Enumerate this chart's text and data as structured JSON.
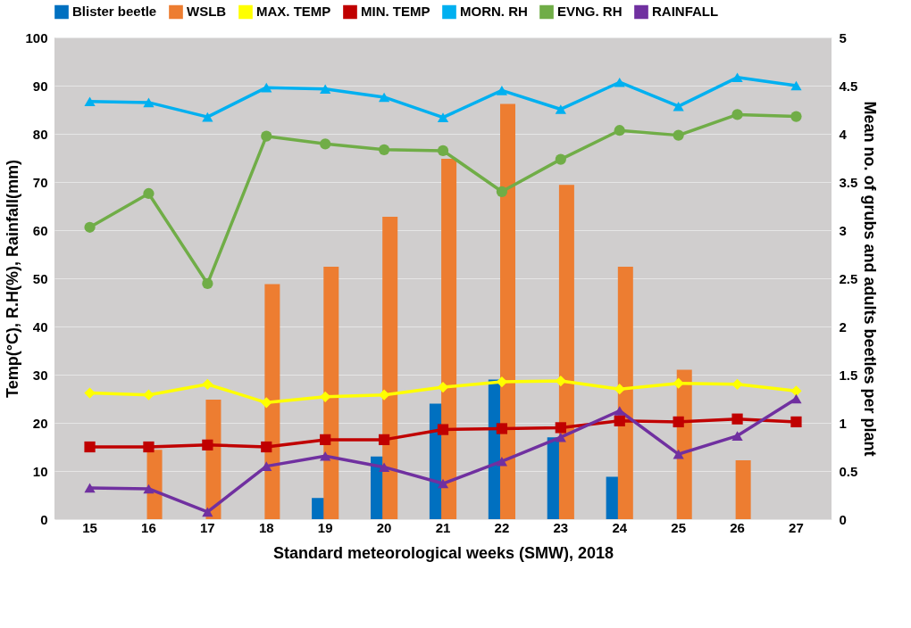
{
  "chart_data": {
    "type": "bar",
    "xlabel": "Standard meteorological weeks (SMW), 2018",
    "ylabel": "Temp(°C), R.H(%),  Rainfall(mm)",
    "y2label": "Mean no. of grubs and adults beetles per plant",
    "categories": [
      "15",
      "16",
      "17",
      "18",
      "19",
      "20",
      "21",
      "22",
      "23",
      "24",
      "25",
      "26",
      "27"
    ],
    "ylim": [
      0,
      100
    ],
    "yticks": [
      0,
      10,
      20,
      30,
      40,
      50,
      60,
      70,
      80,
      90,
      100
    ],
    "y2lim": [
      0,
      5
    ],
    "y2ticks": [
      0,
      0.5,
      1,
      1.5,
      2,
      2.5,
      3,
      3.5,
      4,
      4.5,
      5
    ],
    "grid": "y",
    "legend": "top",
    "series": [
      {
        "name": "Blister beetle",
        "axis": "y2",
        "color": "#0070c0",
        "values": [
          null,
          null,
          null,
          null,
          0.22,
          0.65,
          1.2,
          1.45,
          0.85,
          0.44,
          null,
          null,
          null
        ]
      },
      {
        "name": "WSLB",
        "axis": "y2",
        "color": "#ed7d31",
        "values": [
          null,
          0.72,
          1.24,
          2.44,
          2.62,
          3.14,
          3.74,
          4.31,
          3.47,
          2.62,
          1.55,
          0.61,
          null
        ]
      },
      {
        "name": "MAX. TEMP",
        "type": "line",
        "marker": "diamond",
        "color": "#ffff00",
        "values": [
          26.2,
          25.8,
          28,
          24.2,
          25.4,
          25.8,
          27.4,
          28.5,
          28.7,
          27,
          28.2,
          28,
          26.6
        ]
      },
      {
        "name": "MIN. TEMP",
        "type": "line",
        "marker": "square",
        "color": "#c00000",
        "values": [
          15,
          15,
          15.4,
          15,
          16.5,
          16.5,
          18.6,
          18.8,
          19,
          20.4,
          20.2,
          20.8,
          20.2
        ]
      },
      {
        "name": "MORN. RH",
        "type": "line",
        "marker": "triangle",
        "color": "#00b0f0",
        "values": [
          86.7,
          86.5,
          83.5,
          89.6,
          89.3,
          87.6,
          83.4,
          89,
          85.1,
          90.7,
          85.7,
          91.7,
          90
        ]
      },
      {
        "name": "EVNG. RH",
        "type": "line",
        "marker": "circle",
        "color": "#70ad47",
        "values": [
          60.6,
          67.6,
          48.9,
          79.5,
          77.9,
          76.7,
          76.5,
          68,
          74.7,
          80.7,
          79.7,
          84,
          83.6
        ]
      },
      {
        "name": "RAINFALL",
        "type": "line",
        "marker": "triangle",
        "color": "#7030a0",
        "values": [
          6.5,
          6.3,
          1.5,
          11,
          13.1,
          10.8,
          7.4,
          12,
          17,
          22.5,
          13.5,
          17.3,
          25
        ]
      }
    ]
  }
}
